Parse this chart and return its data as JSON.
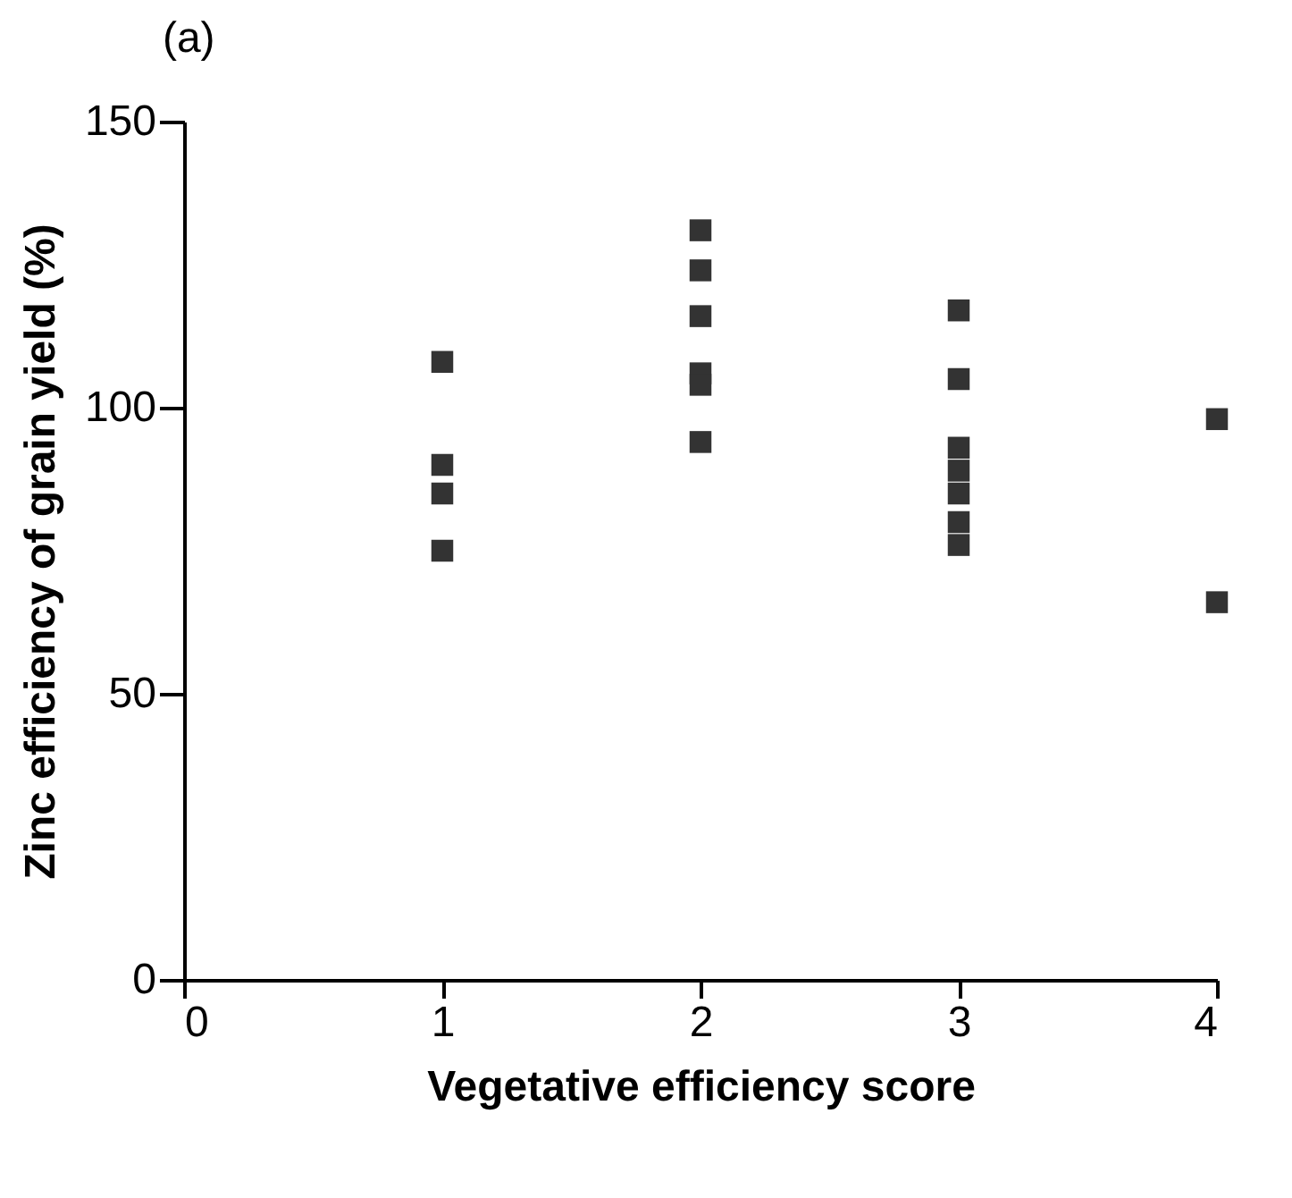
{
  "chart_data": {
    "type": "scatter",
    "title": "(a)",
    "xlabel": "Vegetative efficiency score",
    "ylabel": "Zinc efficiency of grain yield (%)",
    "x": [
      1,
      1,
      1,
      1,
      2,
      2,
      2,
      2,
      2,
      2,
      3,
      3,
      3,
      3,
      3,
      3,
      3,
      4,
      4
    ],
    "series": [
      {
        "color": "#333333",
        "values": [
          108,
          90,
          85,
          75,
          131,
          124,
          116,
          106,
          104,
          94,
          117,
          105,
          93,
          89,
          85,
          80,
          76,
          98,
          66
        ]
      }
    ],
    "xlim": [
      0,
      4
    ],
    "xticks": [
      0,
      1,
      2,
      3,
      4
    ],
    "ylim": [
      0,
      150
    ],
    "yticks": [
      0,
      50,
      100,
      150
    ],
    "marker": "square",
    "grid": false
  }
}
